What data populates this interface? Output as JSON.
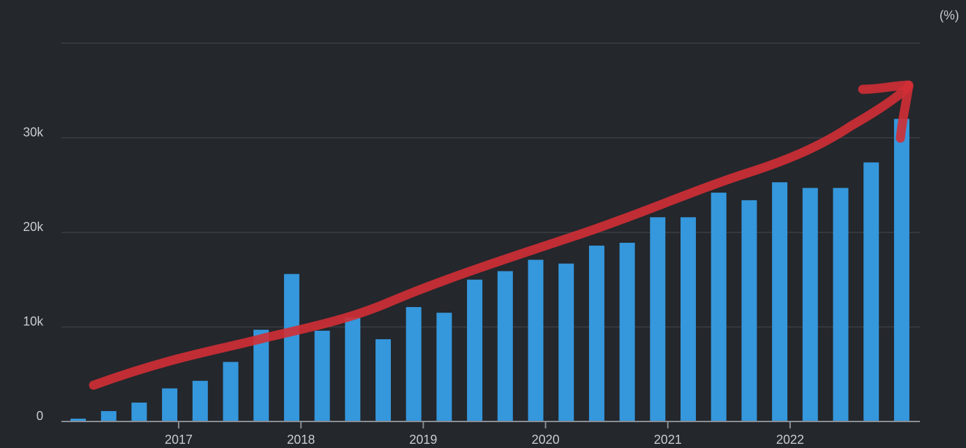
{
  "chart_data": {
    "type": "bar",
    "unit_label": "(%)",
    "y_ticks": [
      "0",
      "10k",
      "20k",
      "30k"
    ],
    "y_tick_values": [
      0,
      10000,
      20000,
      30000
    ],
    "ylim": [
      0,
      40000
    ],
    "x_ticks": [
      "2017",
      "2018",
      "2019",
      "2020",
      "2021",
      "2022"
    ],
    "values": [
      300,
      1100,
      2000,
      3500,
      4300,
      6300,
      9700,
      15600,
      9600,
      11000,
      8700,
      12100,
      11500,
      15000,
      15900,
      17100,
      16700,
      18600,
      18900,
      21600,
      21600,
      24200,
      23400,
      25300,
      24700,
      24700,
      27400,
      32000
    ],
    "grid": true,
    "colors": {
      "background": "#24272c",
      "bar": "#3597dc",
      "grid": "#3b3f45",
      "axis": "#8a8e94",
      "text": "#c9ccd1",
      "annotation": "#d12f35"
    },
    "annotation": {
      "type": "hand-drawn-arrow",
      "color": "#d12f35",
      "direction": "up-right"
    }
  }
}
